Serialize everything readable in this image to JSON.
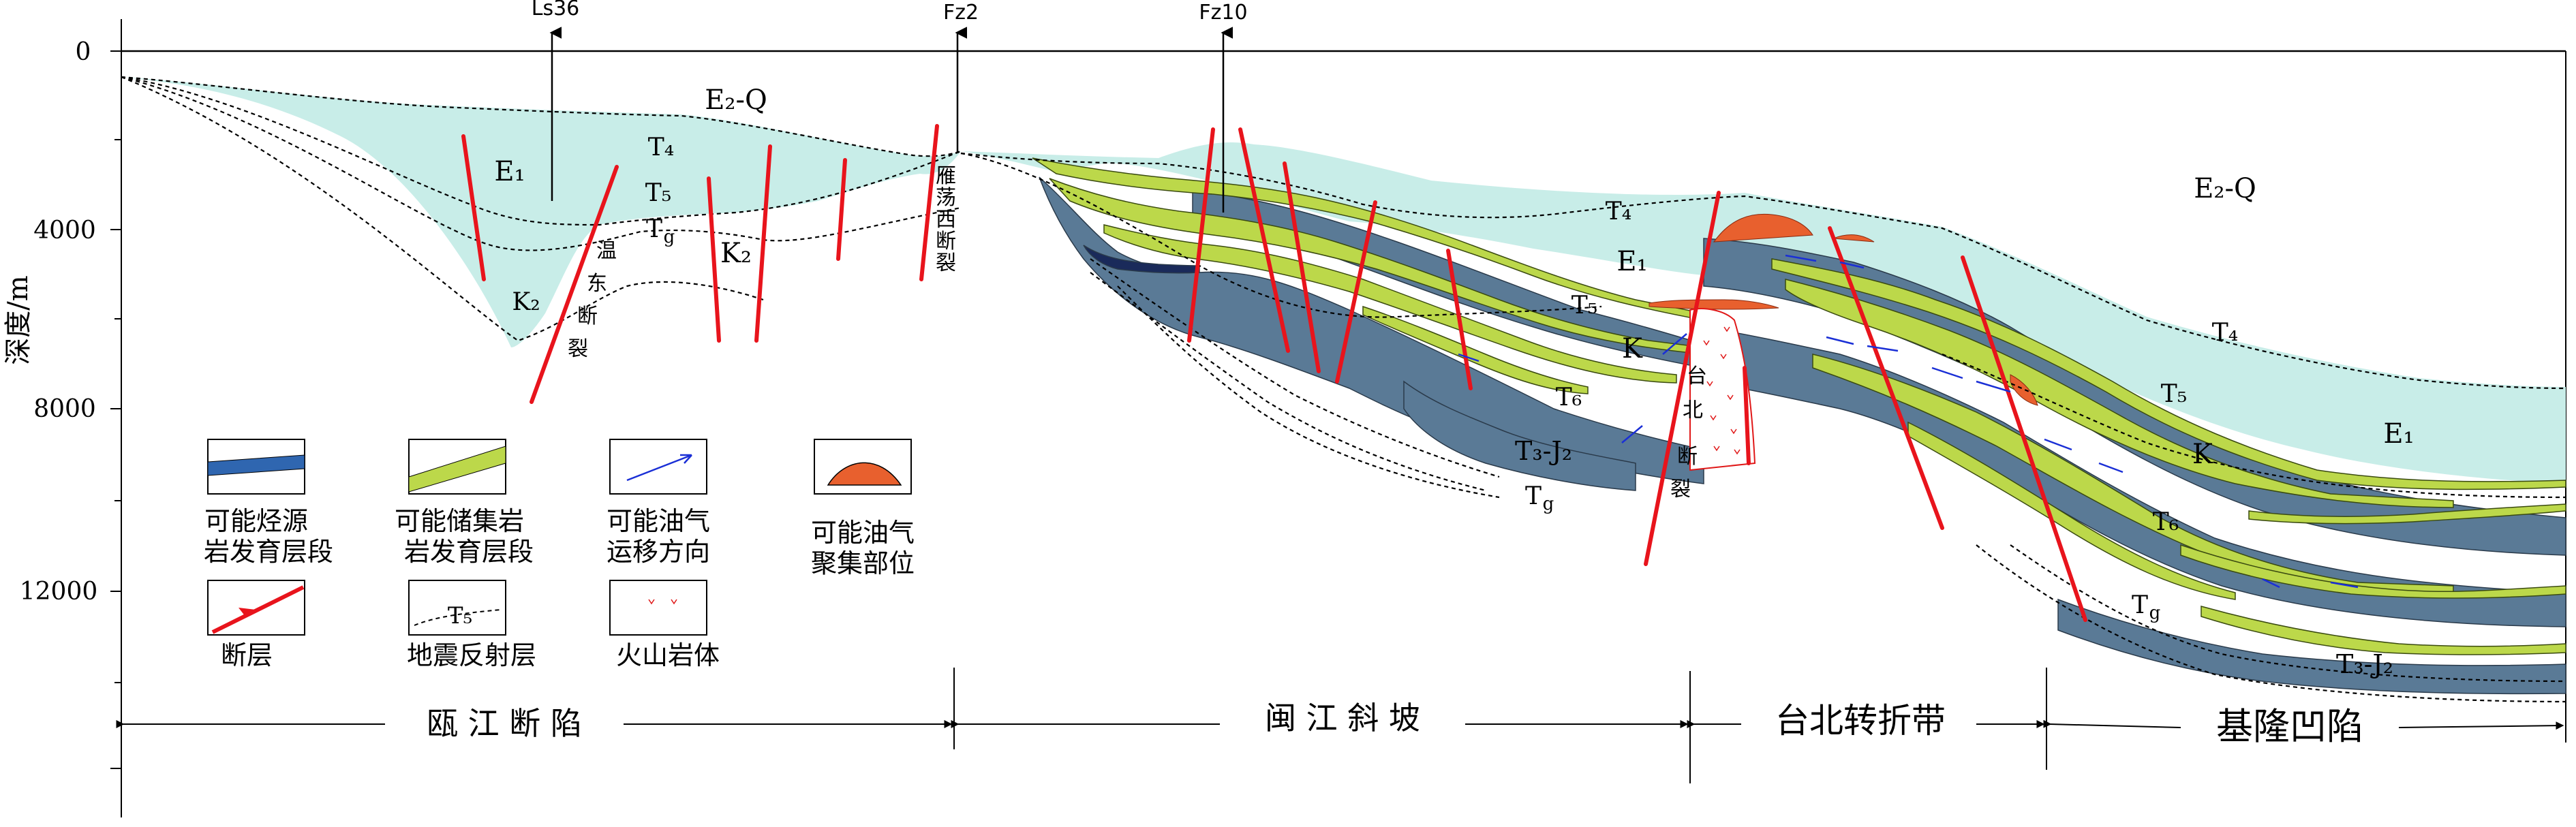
{
  "axis": {
    "ylabel": "深度/m",
    "ticks": [
      "0",
      "4000",
      "8000",
      "12000"
    ]
  },
  "wells": [
    "Ls36",
    "Fz2",
    "Fz10"
  ],
  "layers": {
    "e2q_left": "E₂-Q",
    "e2q_right": "E₂-Q",
    "e1_left": "E₁",
    "e1_mid": "E₁",
    "e1_right": "E₁",
    "k2_a": "K₂",
    "k2_b": "K₂",
    "k_mid": "K",
    "k_right": "K",
    "t4_left": "T₄",
    "t4_mid": "T₄",
    "t4_right": "T₄",
    "t5_left": "T₅",
    "t5_mid": "T₅",
    "t5_right": "T₅",
    "t6_mid": "T₆",
    "t6_right": "T₆",
    "tg_left": "T",
    "tg_left_sub": "g",
    "tg_mid": "T",
    "tg_mid_sub": "g",
    "tg_right": "T",
    "tg_right_sub": "g",
    "t3j2_mid": "T₃-J₂",
    "t3j2_right": "T₃-J₂"
  },
  "faults": {
    "wendong": [
      "温",
      "东",
      "断",
      "裂"
    ],
    "yandang": [
      "雁",
      "荡",
      "西",
      "断",
      "裂"
    ],
    "taibei": [
      "台",
      "北",
      "断",
      "裂"
    ]
  },
  "legend": {
    "source_rock": [
      "可能烃源",
      "岩发育层段"
    ],
    "reservoir": [
      "可能储集岩",
      "岩发育层段"
    ],
    "migration": [
      "可能油气",
      "运移方向"
    ],
    "accumulation": [
      "可能油气",
      "聚集部位"
    ],
    "fault": "断层",
    "seismic": "地震反射层",
    "seismic_sample": "T₅",
    "volcanic": "火山岩体"
  },
  "zones": [
    "瓯 江 断 陷",
    "闽 江 斜 坡",
    "台北转折带",
    "基隆凹陷"
  ],
  "colors": {
    "seawater_fill": "#c8ede8",
    "source_rock": "#5a7a96",
    "source_rock_legend": "#2f66b0",
    "reservoir": "#bcd84a",
    "accumulation": "#e8602e",
    "fault": "#e8141c",
    "migration_arrow": "#1a2fd6",
    "volcanic_dot": "#e01818"
  }
}
